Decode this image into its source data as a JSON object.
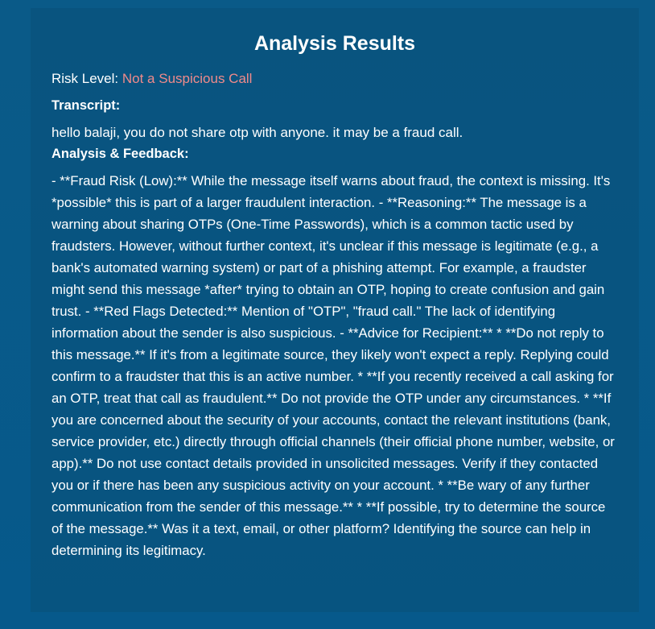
{
  "header": {
    "title": "Analysis Results"
  },
  "risk": {
    "label": "Risk Level:",
    "value": "Not a Suspicious Call"
  },
  "transcript": {
    "heading": "Transcript:",
    "text": "hello balaji, you do not share otp with anyone. it may be a fraud call."
  },
  "analysis": {
    "heading": "Analysis & Feedback:",
    "text": "- **Fraud Risk (Low):** While the message itself warns about fraud, the context is missing. It's *possible* this is part of a larger fraudulent interaction. - **Reasoning:** The message is a warning about sharing OTPs (One-Time Passwords), which is a common tactic used by fraudsters. However, without further context, it's unclear if this message is legitimate (e.g., a bank's automated warning system) or part of a phishing attempt. For example, a fraudster might send this message *after* trying to obtain an OTP, hoping to create confusion and gain trust. - **Red Flags Detected:** Mention of \"OTP\", \"fraud call.\" The lack of identifying information about the sender is also suspicious. - **Advice for Recipient:** * **Do not reply to this message.** If it's from a legitimate source, they likely won't expect a reply. Replying could confirm to a fraudster that this is an active number. * **If you recently received a call asking for an OTP, treat that call as fraudulent.** Do not provide the OTP under any circumstances. * **If you are concerned about the security of your accounts, contact the relevant institutions (bank, service provider, etc.) directly through official channels (their official phone number, website, or app).** Do not use contact details provided in unsolicited messages. Verify if they contacted you or if there has been any suspicious activity on your account. * **Be wary of any further communication from the sender of this message.** * **If possible, try to determine the source of the message.** Was it a text, email, or other platform? Identifying the source can help in determining its legitimacy."
  },
  "colors": {
    "background": "#06598b",
    "card": "#0a5078",
    "risk_value": "#f08a8a",
    "text": "#ffffff"
  }
}
